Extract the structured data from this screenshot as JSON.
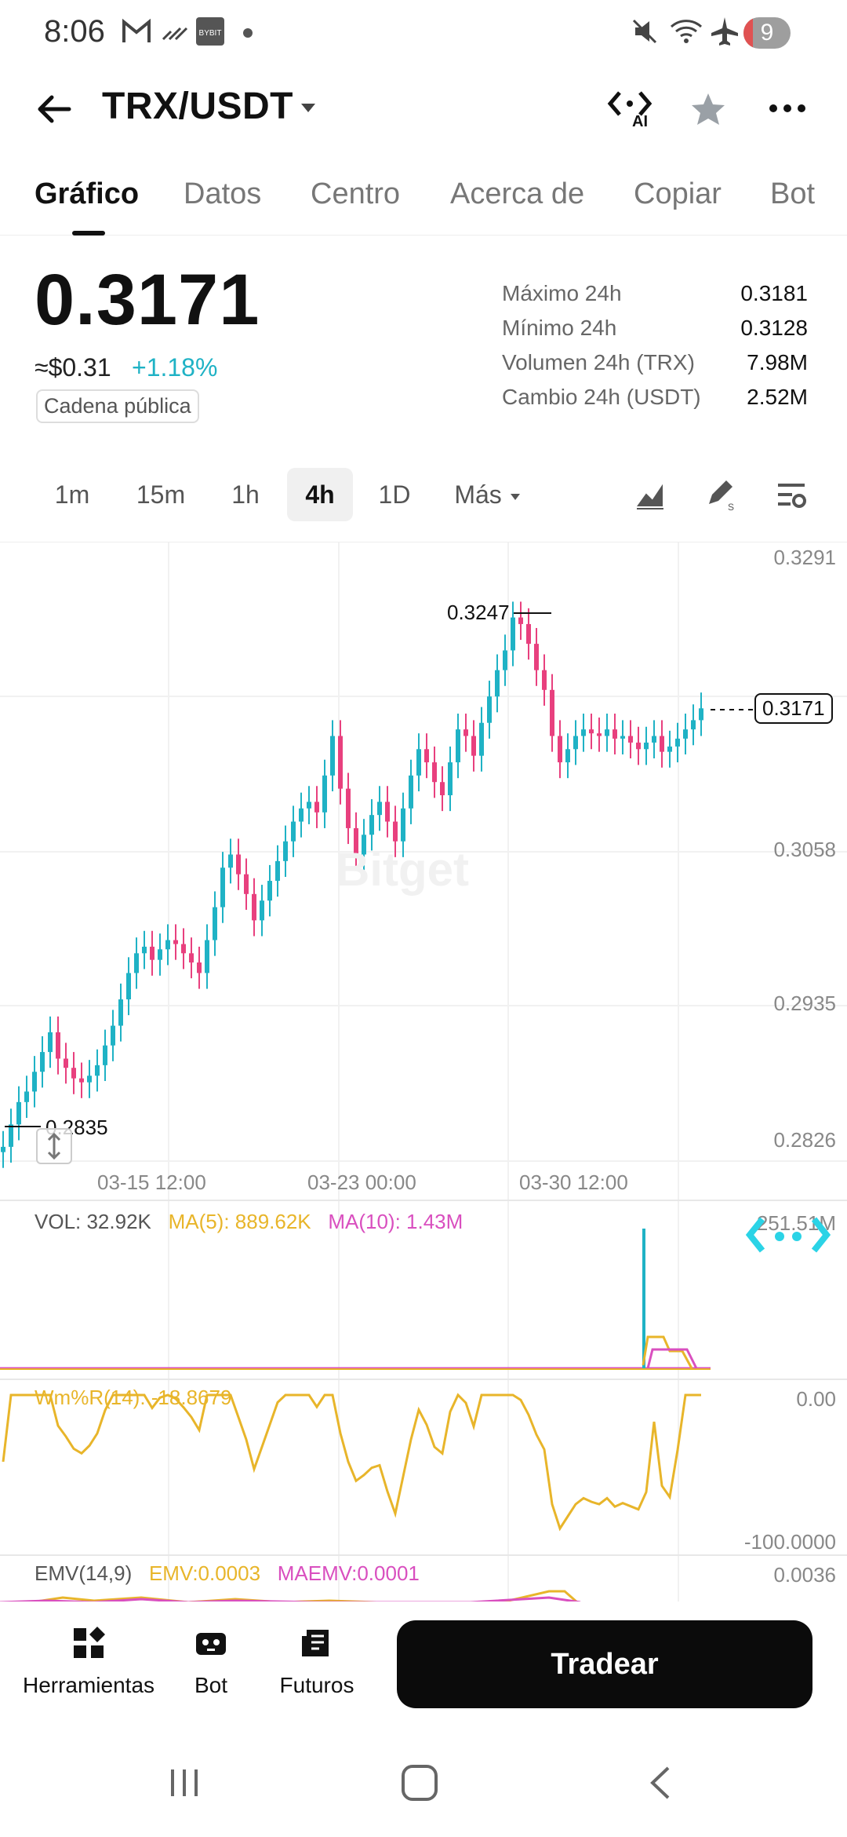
{
  "status_bar": {
    "time": "8:06",
    "notification_count": "9"
  },
  "header": {
    "pair": "TRX/USDT",
    "ai_label": "AI"
  },
  "tabs": [
    {
      "label": "Gráfico"
    },
    {
      "label": "Datos"
    },
    {
      "label": "Centro"
    },
    {
      "label": "Acerca de"
    },
    {
      "label": "Copiar"
    },
    {
      "label": "Bot"
    }
  ],
  "price": {
    "last": "0.3171",
    "usd": "≈$0.31",
    "change": "+1.18%",
    "chain_tag": "Cadena pública"
  },
  "stats": [
    {
      "label": "Máximo 24h",
      "value": "0.3181"
    },
    {
      "label": "Mínimo 24h",
      "value": "0.3128"
    },
    {
      "label": "Volumen 24h (TRX)",
      "value": "7.98M"
    },
    {
      "label": "Cambio 24h (USDT)",
      "value": "2.52M"
    }
  ],
  "intervals": [
    "1m",
    "15m",
    "1h",
    "4h",
    "1D"
  ],
  "intervals_more": "Más",
  "chart": {
    "watermark": "Bitget",
    "y_axis": [
      "0.3291",
      "0.3058",
      "0.2935",
      "0.2826"
    ],
    "x_axis": [
      "03-15 12:00",
      "03-23 00:00",
      "03-30 12:00"
    ],
    "high_label": "0.3247",
    "low_label": "0.2835",
    "current_label": "0.3171",
    "vol_legend": {
      "vol": "VOL: 32.92K",
      "ma5": "MA(5): 889.62K",
      "ma10": "MA(10): 1.43M"
    },
    "vol_axis": "251.51M",
    "wr_legend": "Wm%R(14): -18.8679",
    "wr_axis_top": "0.00",
    "wr_axis_bottom": "-100.0000",
    "emv_legend": {
      "name": "EMV(14,9)",
      "emv": "EMV:0.0003",
      "maemv": "MAEMV:0.0001"
    },
    "emv_axis": "0.0036",
    "colors": {
      "up": "#1fb2c5",
      "down": "#e8407e",
      "ma5": "#e8b52a",
      "ma10": "#d94fbf"
    }
  },
  "chart_data": {
    "type": "candlestick",
    "x_labels": [
      "03-15 12:00",
      "03-23 00:00",
      "03-30 12:00"
    ],
    "ylim": [
      0.2826,
      0.3291
    ],
    "high": 0.3247,
    "low": 0.2835,
    "last": 0.3171,
    "closes": [
      0.2838,
      0.2855,
      0.2872,
      0.288,
      0.2895,
      0.291,
      0.2925,
      0.2905,
      0.2898,
      0.289,
      0.2887,
      0.2892,
      0.29,
      0.2915,
      0.293,
      0.295,
      0.297,
      0.2985,
      0.299,
      0.298,
      0.2988,
      0.2995,
      0.2992,
      0.2985,
      0.2978,
      0.297,
      0.2995,
      0.302,
      0.305,
      0.306,
      0.3045,
      0.303,
      0.301,
      0.3025,
      0.304,
      0.3055,
      0.307,
      0.3085,
      0.3095,
      0.31,
      0.3092,
      0.312,
      0.315,
      0.311,
      0.308,
      0.306,
      0.3075,
      0.309,
      0.31,
      0.3085,
      0.307,
      0.3095,
      0.312,
      0.314,
      0.313,
      0.3115,
      0.3105,
      0.313,
      0.3155,
      0.315,
      0.3135,
      0.316,
      0.318,
      0.32,
      0.3215,
      0.324,
      0.3235,
      0.322,
      0.32,
      0.3185,
      0.315,
      0.313,
      0.314,
      0.315,
      0.3155,
      0.3152,
      0.315,
      0.3155,
      0.3148,
      0.315,
      0.3145,
      0.314,
      0.3145,
      0.315,
      0.3138,
      0.3142,
      0.3148,
      0.3155,
      0.3162,
      0.3171
    ]
  }
}
